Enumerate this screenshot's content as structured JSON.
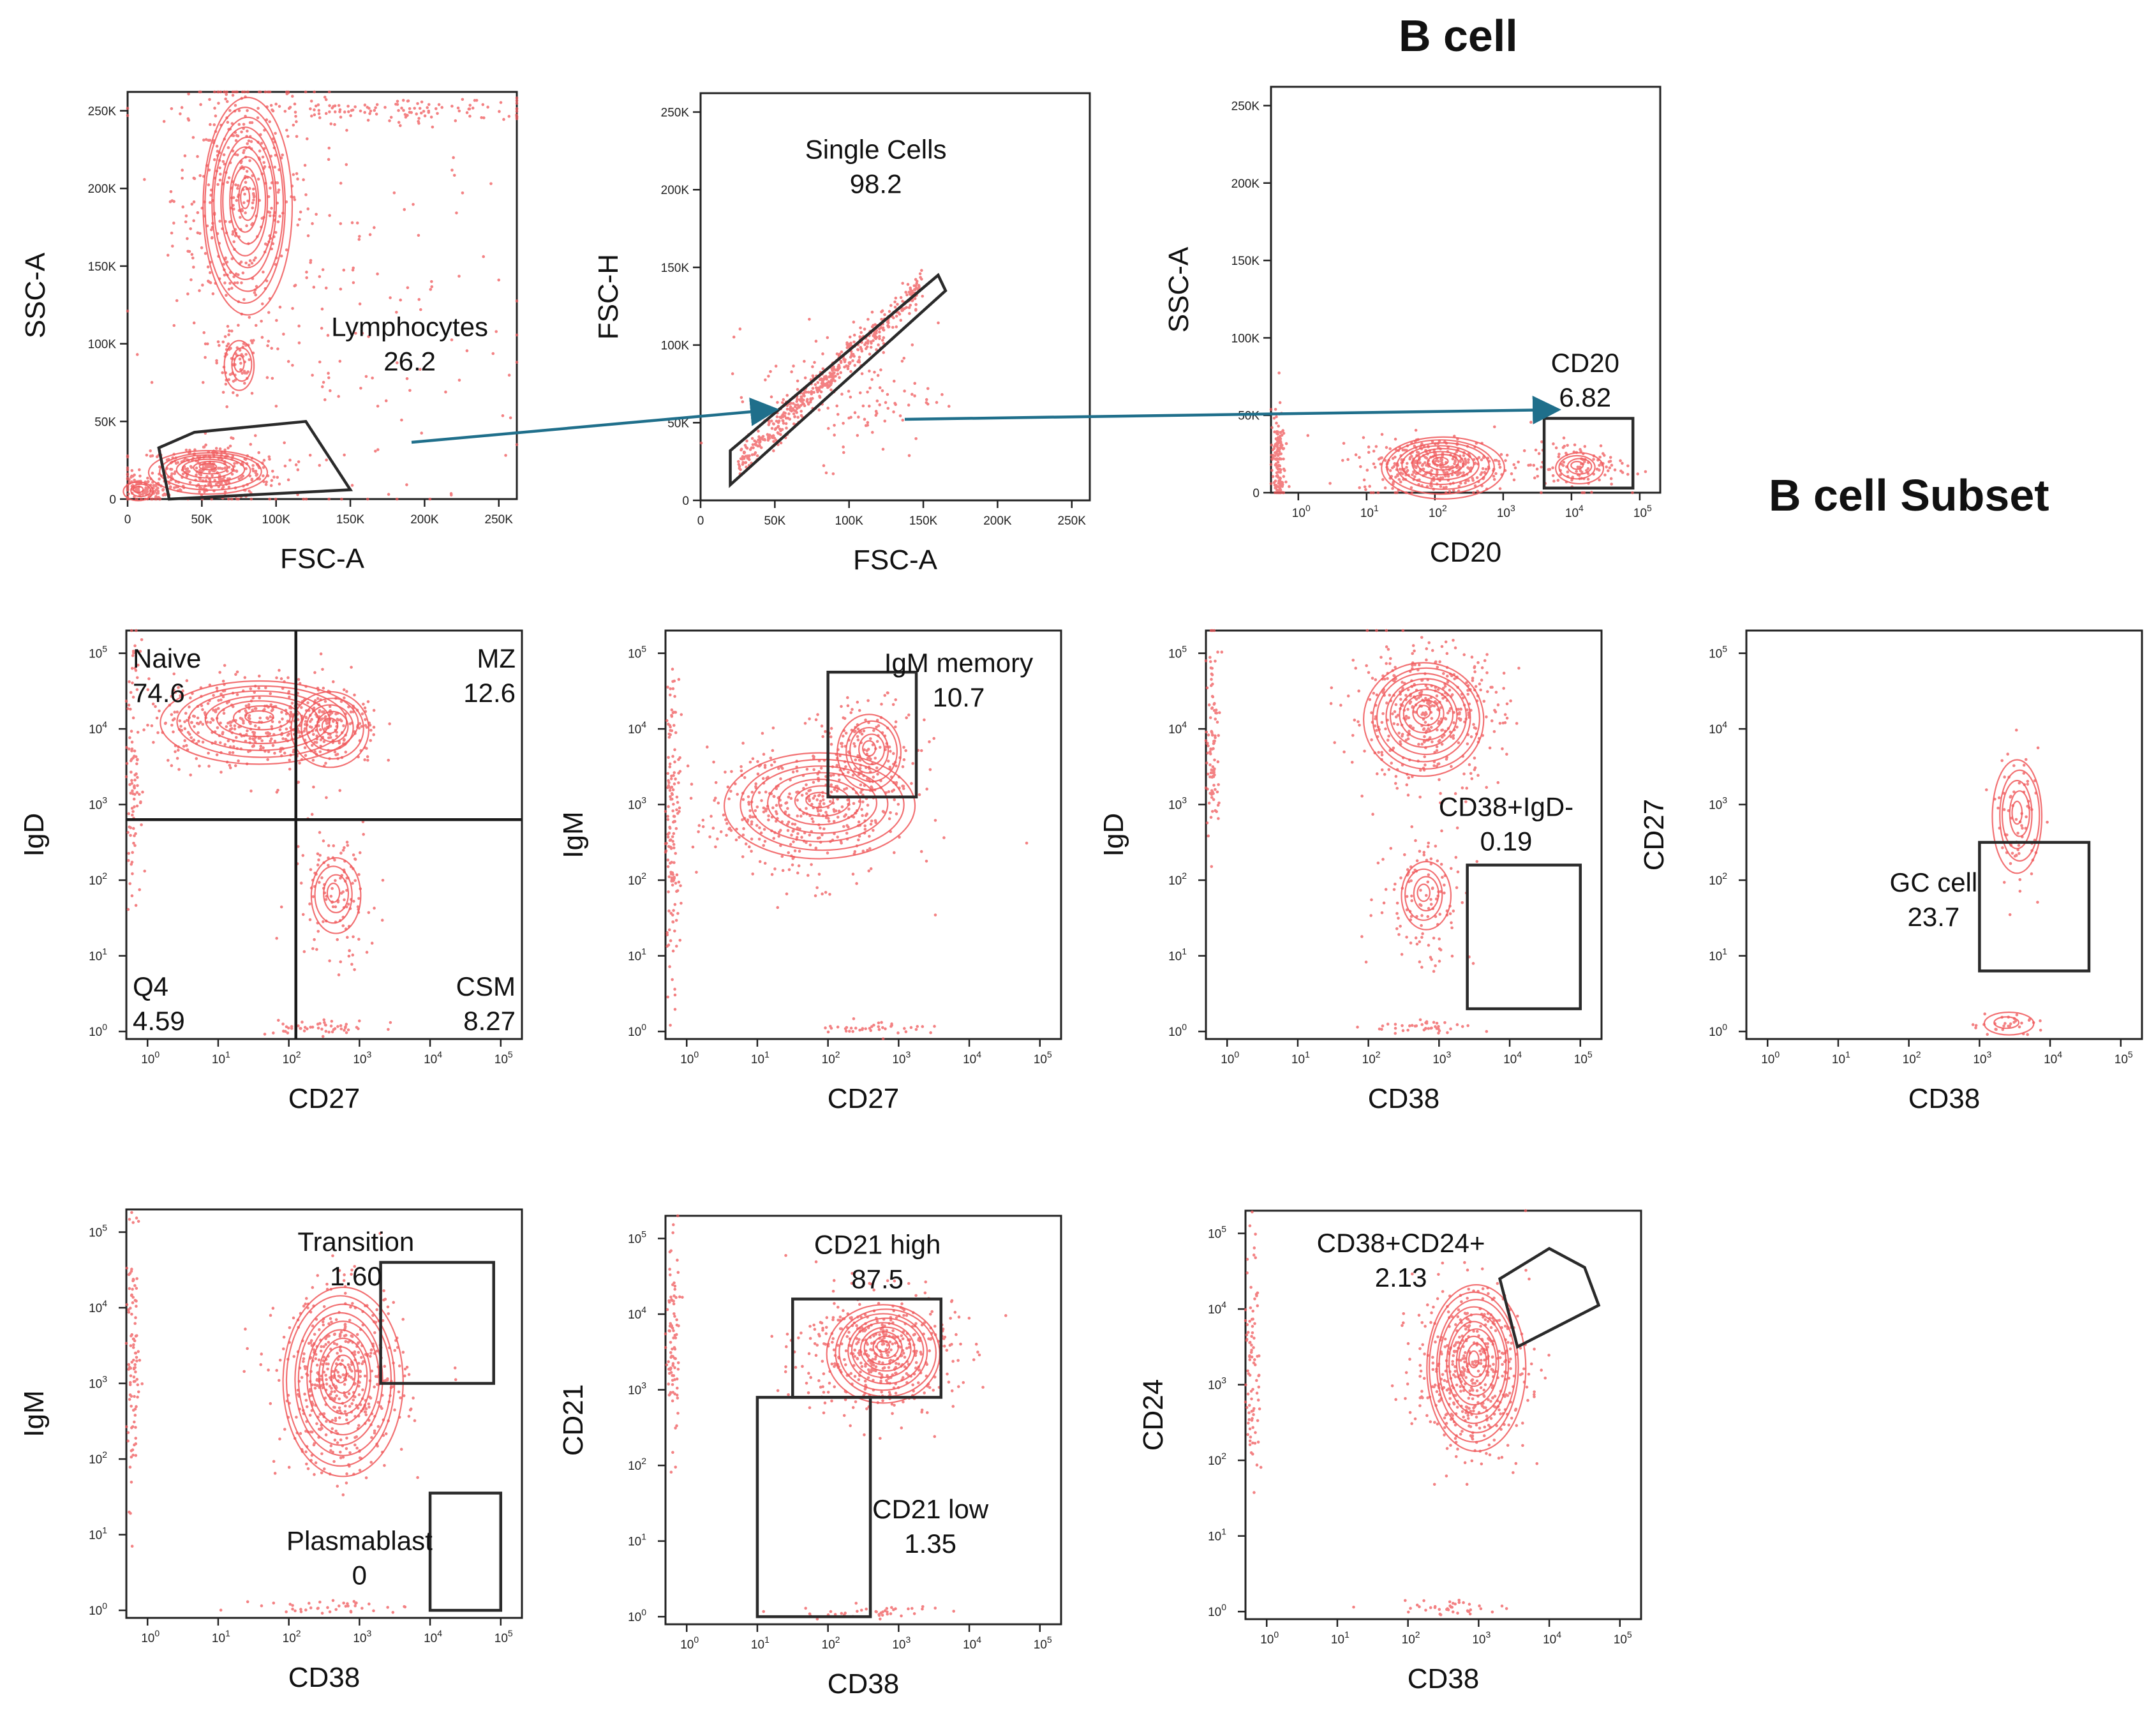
{
  "titles": {
    "b_cell": "B cell",
    "b_cell_subset": "B cell  Subset"
  },
  "colors": {
    "events": "#f0585a",
    "gate": "#2a2a2a",
    "arrow": "#1f6f8b"
  },
  "chart_data": [
    {
      "id": "p1",
      "type": "scatter",
      "xlabel": "FSC-A",
      "ylabel": "SSC-A",
      "scale": "linear",
      "xticks": [
        "0",
        "50K",
        "100K",
        "150K",
        "200K",
        "250K"
      ],
      "yticks": [
        "0",
        "50K",
        "100K",
        "150K",
        "200K",
        "250K"
      ],
      "xlim": [
        0,
        262144
      ],
      "ylim": [
        0,
        262144
      ],
      "populations": [
        {
          "cx": 75000,
          "cy": 195000,
          "sx": 22000,
          "sy": 45000,
          "n": 380
        },
        {
          "cx": 72000,
          "cy": 85000,
          "sx": 8000,
          "sy": 11000,
          "n": 60
        },
        {
          "cx": 55000,
          "cy": 18000,
          "sx": 25000,
          "sy": 9000,
          "n": 320
        },
        {
          "cx": 10000,
          "cy": 6000,
          "sx": 8000,
          "sy": 5000,
          "n": 120
        },
        {
          "cx": 175000,
          "cy": 250000,
          "sx": 60000,
          "sy": 4000,
          "n": 140
        },
        {
          "cx": 150000,
          "cy": 110000,
          "sx": 60000,
          "sy": 70000,
          "n": 160
        }
      ],
      "contours": [
        {
          "cx": 80000,
          "cy": 190000,
          "rx": 30000,
          "ry": 70000,
          "levels": 10
        },
        {
          "cx": 76000,
          "cy": 86000,
          "rx": 10000,
          "ry": 16000,
          "levels": 3
        },
        {
          "cx": 55000,
          "cy": 18000,
          "rx": 40000,
          "ry": 14000,
          "levels": 7
        },
        {
          "cx": 8000,
          "cy": 5000,
          "rx": 10000,
          "ry": 6000,
          "levels": 3
        }
      ],
      "gates": [
        {
          "shape": "polygon",
          "label": "Lymphocytes",
          "value": "26.2",
          "points": [
            [
              21000,
              33000
            ],
            [
              45000,
              43000
            ],
            [
              120000,
              50000
            ],
            [
              150000,
              6000
            ],
            [
              28000,
              0
            ]
          ],
          "label_at": [
            190000,
            105000
          ]
        }
      ]
    },
    {
      "id": "p2",
      "type": "scatter",
      "xlabel": "FSC-A",
      "ylabel": "FSC-H",
      "scale": "linear",
      "xticks": [
        "0",
        "50K",
        "100K",
        "150K",
        "200K",
        "250K"
      ],
      "yticks": [
        "0",
        "50K",
        "100K",
        "150K",
        "200K",
        "250K"
      ],
      "xlim": [
        0,
        262144
      ],
      "ylim": [
        0,
        262144
      ],
      "populations": [
        {
          "diag": true,
          "x0": 25000,
          "x1": 150000,
          "n": 500,
          "spread": 5000
        },
        {
          "cx": 100000,
          "cy": 70000,
          "sx": 30000,
          "sy": 22000,
          "n": 140
        }
      ],
      "contours": [],
      "gates": [
        {
          "shape": "polygon",
          "label": "Single Cells",
          "value": "98.2",
          "points": [
            [
              20000,
              10000
            ],
            [
              20000,
              32000
            ],
            [
              160000,
              145000
            ],
            [
              165000,
              135000
            ]
          ],
          "label_at": [
            118000,
            220000
          ]
        }
      ]
    },
    {
      "id": "p3",
      "type": "scatter",
      "xlabel": "CD20",
      "ylabel": "SSC-A",
      "scale": "logx",
      "xticks": [
        "10^0",
        "10^1",
        "10^2",
        "10^3",
        "10^4",
        "10^5"
      ],
      "yticks": [
        "0",
        "50K",
        "100K",
        "150K",
        "200K",
        "250K"
      ],
      "xlim": [
        -0.4,
        5.3
      ],
      "ylim": [
        0,
        262144
      ],
      "populations": [
        {
          "cx": 2.0,
          "cy": 18000,
          "sx": 0.55,
          "sy": 9000,
          "n": 380
        },
        {
          "cx": 4.1,
          "cy": 17000,
          "sx": 0.35,
          "sy": 8000,
          "n": 110
        },
        {
          "cx": -0.3,
          "cy": 20000,
          "sx": 0.05,
          "sy": 16000,
          "n": 150
        }
      ],
      "contours": [
        {
          "cx": 2.1,
          "cy": 17000,
          "rx": 0.9,
          "ry": 20000,
          "levels": 8
        },
        {
          "cx": 4.1,
          "cy": 16000,
          "rx": 0.35,
          "ry": 10000,
          "levels": 4
        }
      ],
      "gates": [
        {
          "shape": "rect",
          "label": "CD20",
          "value": "6.82",
          "x0": 3.6,
          "x1": 4.9,
          "y0": 3000,
          "y1": 48000,
          "label_at": [
            4.2,
            78000
          ]
        }
      ]
    },
    {
      "id": "p4",
      "type": "scatter",
      "xlabel": "CD27",
      "ylabel": "IgD",
      "scale": "loglog",
      "xticks": [
        "10^0",
        "10^1",
        "10^2",
        "10^3",
        "10^4",
        "10^5"
      ],
      "yticks": [
        "10^0",
        "10^1",
        "10^2",
        "10^3",
        "10^4",
        "10^5"
      ],
      "xlim": [
        -0.3,
        5.3
      ],
      "ylim": [
        -0.1,
        5.3
      ],
      "populations": [
        {
          "cx": 1.4,
          "cy": 4.1,
          "sx": 0.7,
          "sy": 0.3,
          "n": 380
        },
        {
          "cx": 2.6,
          "cy": 4.0,
          "sx": 0.35,
          "sy": 0.3,
          "n": 160
        },
        {
          "cx": 2.65,
          "cy": 1.8,
          "sx": 0.3,
          "sy": 0.5,
          "n": 120
        },
        {
          "cx": -0.2,
          "cy": 3.5,
          "sx": 0.05,
          "sy": 0.8,
          "n": 90
        },
        {
          "cx": 2.5,
          "cy": 0.05,
          "sx": 0.4,
          "sy": 0.05,
          "n": 50
        }
      ],
      "contours": [
        {
          "cx": 1.6,
          "cy": 4.1,
          "rx": 1.4,
          "ry": 0.55,
          "levels": 7
        },
        {
          "cx": 2.6,
          "cy": 4.0,
          "rx": 0.55,
          "ry": 0.5,
          "levels": 5
        },
        {
          "cx": 2.65,
          "cy": 1.8,
          "rx": 0.35,
          "ry": 0.5,
          "levels": 4
        }
      ],
      "gates": [
        {
          "shape": "quadrant",
          "qx": 2.1,
          "qy": 2.8,
          "labels": [
            {
              "label": "Naive",
              "value": "74.6",
              "pos": "top-left"
            },
            {
              "label": "MZ",
              "value": "12.6",
              "pos": "top-right"
            },
            {
              "label": "Q4",
              "value": "4.59",
              "pos": "bottom-left"
            },
            {
              "label": "CSM",
              "value": "8.27",
              "pos": "bottom-right"
            }
          ]
        }
      ]
    },
    {
      "id": "p5",
      "type": "scatter",
      "xlabel": "CD27",
      "ylabel": "IgM",
      "scale": "loglog",
      "xticks": [
        "10^0",
        "10^1",
        "10^2",
        "10^3",
        "10^4",
        "10^5"
      ],
      "yticks": [
        "10^0",
        "10^1",
        "10^2",
        "10^3",
        "10^4",
        "10^5"
      ],
      "xlim": [
        -0.3,
        5.3
      ],
      "ylim": [
        -0.1,
        5.3
      ],
      "populations": [
        {
          "cx": 1.6,
          "cy": 2.9,
          "sx": 0.75,
          "sy": 0.45,
          "n": 420
        },
        {
          "cx": 2.6,
          "cy": 3.7,
          "sx": 0.35,
          "sy": 0.35,
          "n": 150
        },
        {
          "cx": -0.2,
          "cy": 2.8,
          "sx": 0.05,
          "sy": 1.0,
          "n": 140
        },
        {
          "cx": 2.7,
          "cy": 0.05,
          "sx": 0.4,
          "sy": 0.05,
          "n": 40
        }
      ],
      "contours": [
        {
          "cx": 1.9,
          "cy": 3.0,
          "rx": 1.35,
          "ry": 0.7,
          "levels": 7
        },
        {
          "cx": 2.6,
          "cy": 3.7,
          "rx": 0.45,
          "ry": 0.5,
          "levels": 5
        }
      ],
      "gates": [
        {
          "shape": "rect",
          "label": "IgM memory",
          "value": "10.7",
          "x0": 2.0,
          "x1": 3.25,
          "y0": 3.1,
          "y1": 4.75,
          "label_at": [
            3.85,
            4.75
          ]
        }
      ]
    },
    {
      "id": "p6",
      "type": "scatter",
      "xlabel": "CD38",
      "ylabel": "IgD",
      "scale": "loglog",
      "xticks": [
        "10^0",
        "10^1",
        "10^2",
        "10^3",
        "10^4",
        "10^5"
      ],
      "yticks": [
        "10^0",
        "10^1",
        "10^2",
        "10^3",
        "10^4",
        "10^5"
      ],
      "xlim": [
        -0.3,
        5.3
      ],
      "ylim": [
        -0.1,
        5.3
      ],
      "populations": [
        {
          "cx": 2.8,
          "cy": 4.2,
          "sx": 0.55,
          "sy": 0.45,
          "n": 420
        },
        {
          "cx": 2.8,
          "cy": 1.8,
          "sx": 0.35,
          "sy": 0.5,
          "n": 120
        },
        {
          "cx": -0.2,
          "cy": 3.8,
          "sx": 0.05,
          "sy": 0.7,
          "n": 100
        },
        {
          "cx": 2.8,
          "cy": 0.05,
          "sx": 0.4,
          "sy": 0.05,
          "n": 40
        }
      ],
      "contours": [
        {
          "cx": 2.8,
          "cy": 4.15,
          "rx": 0.85,
          "ry": 0.75,
          "levels": 9
        },
        {
          "cx": 2.8,
          "cy": 1.8,
          "rx": 0.35,
          "ry": 0.45,
          "levels": 4
        }
      ],
      "gates": [
        {
          "shape": "rect",
          "label": "CD38+IgD-",
          "value": "0.19",
          "x0": 3.4,
          "x1": 5.0,
          "y0": 0.3,
          "y1": 2.2,
          "label_at": [
            3.95,
            2.85
          ]
        }
      ]
    },
    {
      "id": "p7",
      "type": "scatter",
      "xlabel": "CD38",
      "ylabel": "CD27",
      "scale": "loglog",
      "xticks": [
        "10^0",
        "10^1",
        "10^2",
        "10^3",
        "10^4",
        "10^5"
      ],
      "yticks": [
        "10^0",
        "10^1",
        "10^2",
        "10^3",
        "10^4",
        "10^5"
      ],
      "xlim": [
        -0.3,
        5.3
      ],
      "ylim": [
        -0.1,
        5.3
      ],
      "populations": [
        {
          "cx": 3.55,
          "cy": 2.8,
          "sx": 0.15,
          "sy": 0.45,
          "n": 70
        },
        {
          "cx": 3.4,
          "cy": 0.1,
          "sx": 0.3,
          "sy": 0.07,
          "n": 30
        }
      ],
      "contours": [
        {
          "cx": 3.55,
          "cy": 2.85,
          "rx": 0.35,
          "ry": 0.75,
          "levels": 5
        },
        {
          "cx": 3.4,
          "cy": 0.1,
          "rx": 0.35,
          "ry": 0.15,
          "levels": 2
        }
      ],
      "gates": [
        {
          "shape": "rect",
          "label": "GC cell",
          "value": "23.7",
          "x0": 3.0,
          "x1": 4.55,
          "y0": 0.8,
          "y1": 2.5,
          "label_at": [
            2.35,
            1.85
          ]
        }
      ]
    },
    {
      "id": "p8",
      "type": "scatter",
      "xlabel": "CD38",
      "ylabel": "IgM",
      "scale": "loglog",
      "xticks": [
        "10^0",
        "10^1",
        "10^2",
        "10^3",
        "10^4",
        "10^5"
      ],
      "yticks": [
        "10^0",
        "10^1",
        "10^2",
        "10^3",
        "10^4",
        "10^5"
      ],
      "xlim": [
        -0.3,
        5.3
      ],
      "ylim": [
        -0.1,
        5.3
      ],
      "populations": [
        {
          "cx": 2.75,
          "cy": 3.0,
          "sx": 0.45,
          "sy": 0.6,
          "n": 500
        },
        {
          "cx": -0.2,
          "cy": 3.2,
          "sx": 0.05,
          "sy": 0.8,
          "n": 100
        },
        {
          "cx": 2.6,
          "cy": 0.05,
          "sx": 0.5,
          "sy": 0.05,
          "n": 40
        }
      ],
      "contours": [
        {
          "cx": 2.75,
          "cy": 3.05,
          "rx": 0.85,
          "ry": 1.25,
          "levels": 10
        }
      ],
      "gates": [
        {
          "shape": "rect",
          "label": "Transition",
          "value": "1.60",
          "x0": 3.3,
          "x1": 4.9,
          "y0": 3.0,
          "y1": 4.6,
          "label_at": [
            2.95,
            4.75
          ]
        },
        {
          "shape": "rect",
          "label": "Plasmablast",
          "value": "0",
          "x0": 4.0,
          "x1": 5.0,
          "y0": 0.0,
          "y1": 1.55,
          "label_at": [
            3.0,
            0.8
          ]
        }
      ]
    },
    {
      "id": "p9",
      "type": "scatter",
      "xlabel": "CD38",
      "ylabel": "CD21",
      "scale": "loglog",
      "xticks": [
        "10^0",
        "10^1",
        "10^2",
        "10^3",
        "10^4",
        "10^5"
      ],
      "yticks": [
        "10^0",
        "10^1",
        "10^2",
        "10^3",
        "10^4",
        "10^5"
      ],
      "xlim": [
        -0.3,
        5.3
      ],
      "ylim": [
        -0.1,
        5.3
      ],
      "populations": [
        {
          "cx": 2.7,
          "cy": 3.5,
          "sx": 0.55,
          "sy": 0.4,
          "n": 460
        },
        {
          "cx": -0.2,
          "cy": 3.6,
          "sx": 0.05,
          "sy": 0.7,
          "n": 90
        },
        {
          "cx": 2.6,
          "cy": 0.05,
          "sx": 0.5,
          "sy": 0.05,
          "n": 40
        }
      ],
      "contours": [
        {
          "cx": 2.8,
          "cy": 3.5,
          "rx": 0.8,
          "ry": 0.65,
          "levels": 9
        }
      ],
      "gates": [
        {
          "shape": "rect",
          "label": "CD21 high",
          "value": "87.5",
          "x0": 1.5,
          "x1": 3.6,
          "y0": 2.9,
          "y1": 4.2,
          "label_at": [
            2.7,
            4.8
          ]
        },
        {
          "shape": "rect",
          "label": "CD21 low",
          "value": "1.35",
          "x0": 1.0,
          "x1": 2.6,
          "y0": 0.0,
          "y1": 2.9,
          "label_at": [
            3.45,
            1.3
          ]
        }
      ]
    },
    {
      "id": "p10",
      "type": "scatter",
      "xlabel": "CD38",
      "ylabel": "CD24",
      "scale": "loglog",
      "xticks": [
        "10^0",
        "10^1",
        "10^2",
        "10^3",
        "10^4",
        "10^5"
      ],
      "yticks": [
        "10^0",
        "10^1",
        "10^2",
        "10^3",
        "10^4",
        "10^5"
      ],
      "xlim": [
        -0.3,
        5.3
      ],
      "ylim": [
        -0.1,
        5.3
      ],
      "populations": [
        {
          "cx": 2.9,
          "cy": 3.2,
          "sx": 0.4,
          "sy": 0.55,
          "n": 480
        },
        {
          "cx": -0.2,
          "cy": 3.3,
          "sx": 0.05,
          "sy": 0.8,
          "n": 90
        },
        {
          "cx": 2.7,
          "cy": 0.05,
          "sx": 0.5,
          "sy": 0.05,
          "n": 40
        }
      ],
      "contours": [
        {
          "cx": 2.95,
          "cy": 3.25,
          "rx": 0.7,
          "ry": 1.1,
          "levels": 10
        }
      ],
      "gates": [
        {
          "shape": "polygon",
          "label": "CD38+CD24+",
          "value": "2.13",
          "points": [
            [
              3.3,
              4.4
            ],
            [
              3.55,
              3.5
            ],
            [
              4.7,
              4.05
            ],
            [
              4.5,
              4.55
            ],
            [
              4.0,
              4.8
            ]
          ],
          "label_at": [
            1.9,
            4.75
          ]
        }
      ]
    }
  ]
}
